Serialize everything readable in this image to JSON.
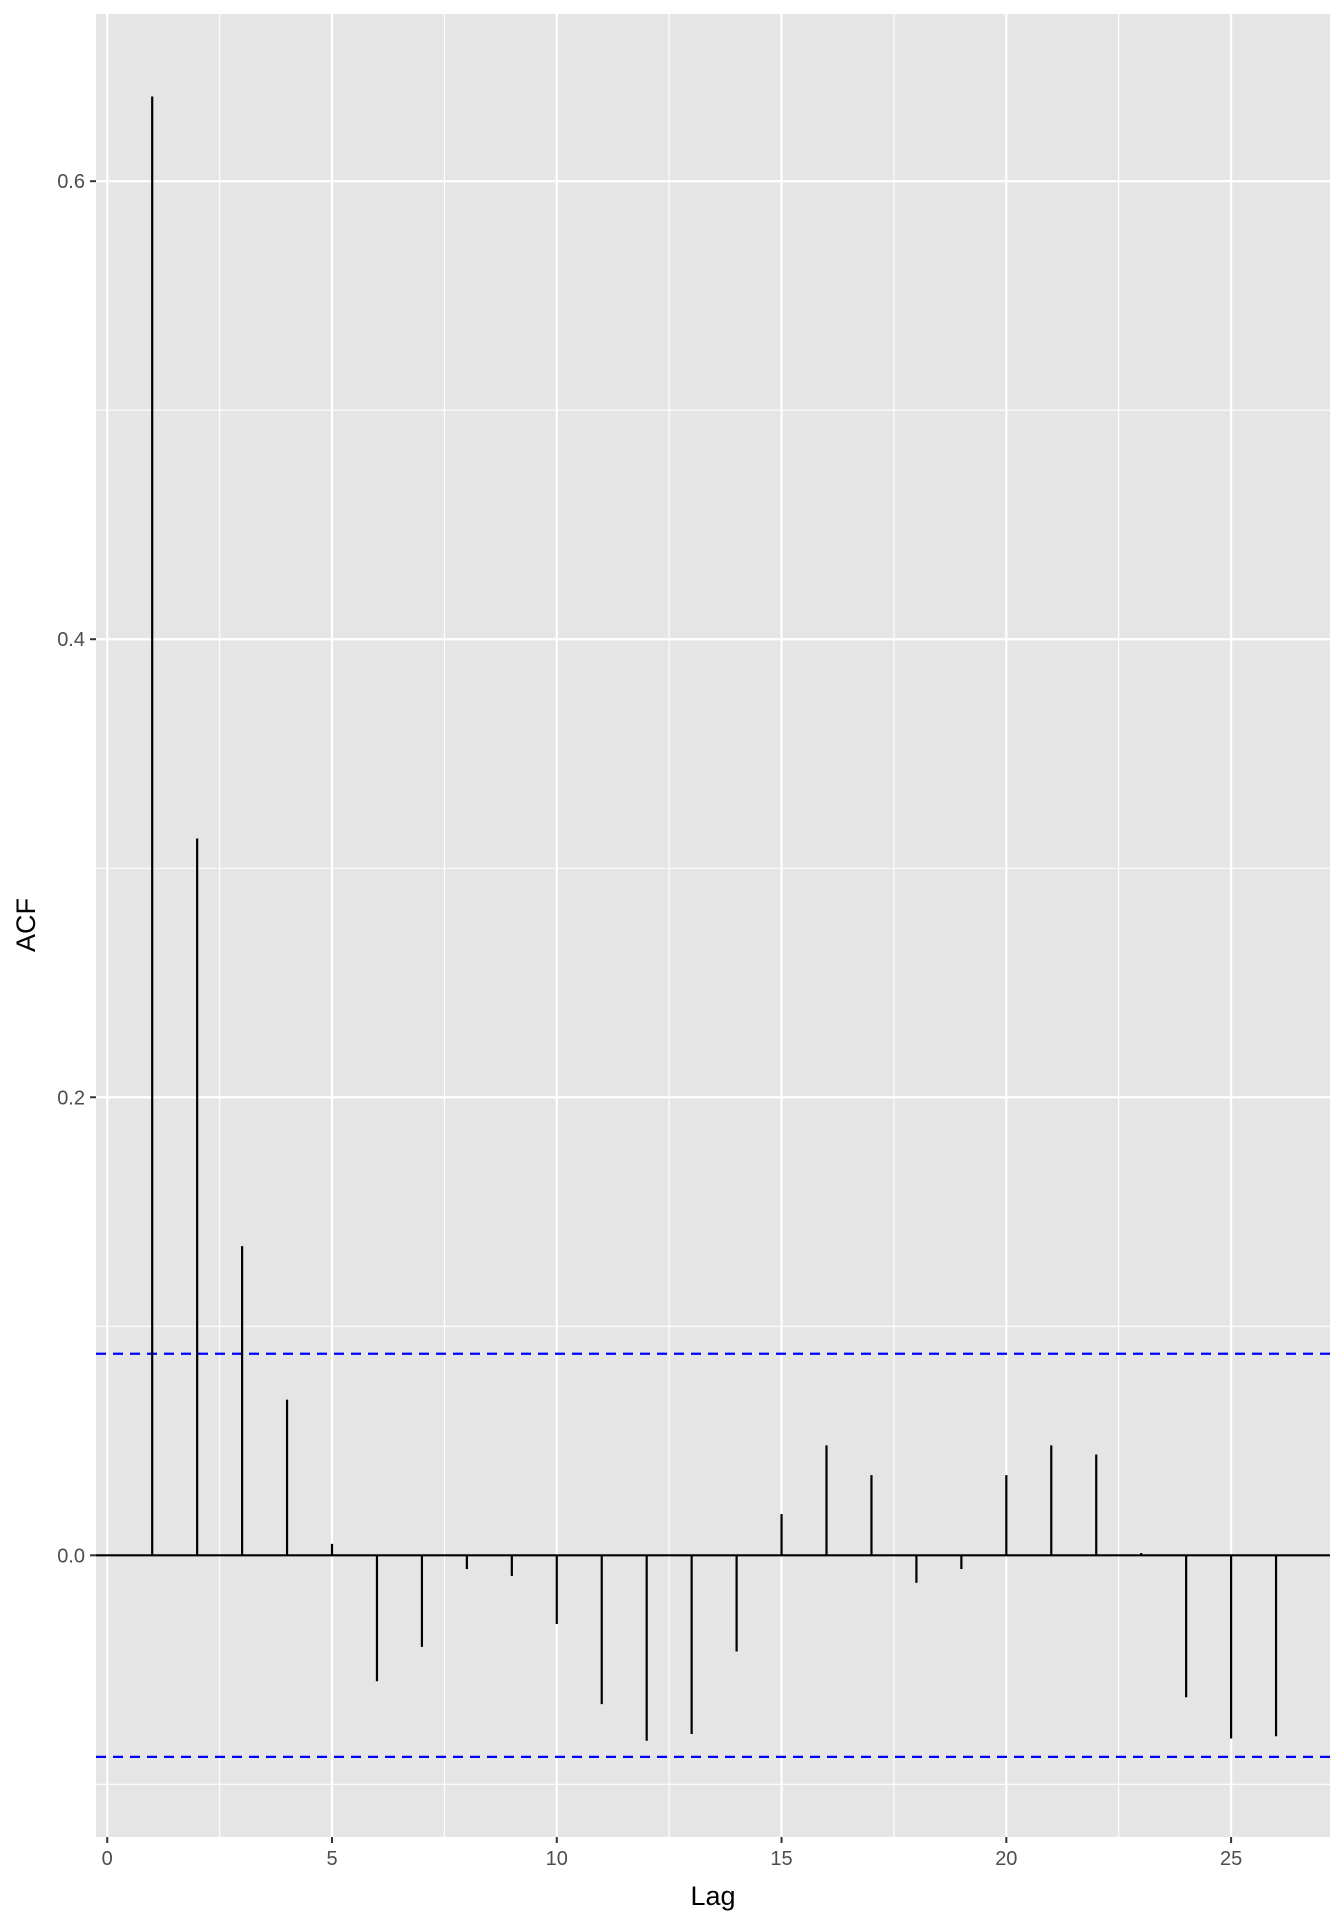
{
  "chart_data": {
    "type": "bar",
    "subtype": "acf-stem",
    "xlabel": "Lag",
    "ylabel": "ACF",
    "x": [
      1,
      2,
      3,
      4,
      5,
      6,
      7,
      8,
      9,
      10,
      11,
      12,
      13,
      14,
      15,
      16,
      17,
      18,
      19,
      20,
      21,
      22,
      23,
      24,
      25,
      26
    ],
    "values": [
      0.637,
      0.313,
      0.135,
      0.068,
      0.005,
      -0.055,
      -0.04,
      -0.006,
      -0.009,
      -0.03,
      -0.065,
      -0.081,
      -0.078,
      -0.042,
      0.018,
      0.048,
      0.035,
      -0.012,
      -0.006,
      0.035,
      0.048,
      0.044,
      0.001,
      -0.062,
      -0.08,
      -0.079
    ],
    "conf_limits": [
      0.088,
      -0.088
    ],
    "xlim": [
      -0.25,
      27.2
    ],
    "ylim": [
      -0.123,
      0.673
    ],
    "x_ticks": [
      0,
      5,
      10,
      15,
      20,
      25
    ],
    "x_tick_labels": [
      "0",
      "5",
      "10",
      "15",
      "20",
      "25"
    ],
    "y_ticks": [
      0.0,
      0.2,
      0.4,
      0.6
    ],
    "y_tick_labels": [
      "0.0",
      "0.2",
      "0.4",
      "0.6"
    ],
    "grid": true,
    "colors": {
      "panel_background": "#e5e5e5",
      "grid": "#ffffff",
      "stem": "#000000",
      "conf_line": "#0000ff"
    }
  }
}
